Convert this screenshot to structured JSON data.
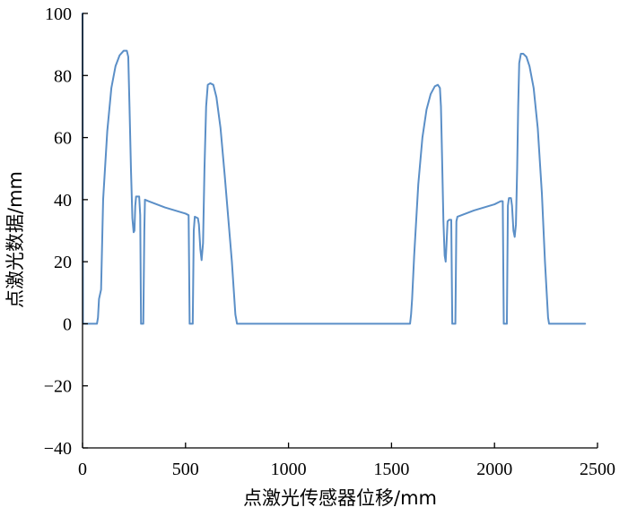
{
  "chart_data": {
    "type": "line",
    "xlabel": "点激光传感器位移/mm",
    "ylabel": "点激光数据/mm",
    "xlim": [
      0,
      2500
    ],
    "ylim": [
      -40,
      100
    ],
    "xticks": [
      0,
      500,
      1000,
      1500,
      2000,
      2500
    ],
    "yticks": [
      -40,
      -20,
      0,
      20,
      40,
      60,
      80,
      100
    ],
    "grid": false,
    "line_color": "#5b8fc7",
    "series": [
      {
        "points": [
          [
            0,
            100
          ],
          [
            2,
            0
          ],
          [
            70,
            0
          ],
          [
            75,
            2
          ],
          [
            80,
            8
          ],
          [
            90,
            11
          ],
          [
            100,
            40
          ],
          [
            120,
            62
          ],
          [
            140,
            76
          ],
          [
            160,
            83
          ],
          [
            180,
            86.5
          ],
          [
            200,
            88
          ],
          [
            215,
            88
          ],
          [
            222,
            86
          ],
          [
            228,
            70
          ],
          [
            235,
            50
          ],
          [
            242,
            34
          ],
          [
            248,
            29.5
          ],
          [
            252,
            30
          ],
          [
            256,
            38
          ],
          [
            260,
            41
          ],
          [
            275,
            41
          ],
          [
            280,
            35
          ],
          [
            284,
            0
          ],
          [
            295,
            0
          ],
          [
            300,
            30
          ],
          [
            303,
            40
          ],
          [
            320,
            39.5
          ],
          [
            400,
            37.5
          ],
          [
            500,
            35.5
          ],
          [
            515,
            35
          ],
          [
            520,
            0
          ],
          [
            535,
            0
          ],
          [
            540,
            30
          ],
          [
            545,
            34.5
          ],
          [
            560,
            34
          ],
          [
            565,
            32
          ],
          [
            572,
            24
          ],
          [
            578,
            20.5
          ],
          [
            585,
            26
          ],
          [
            592,
            50
          ],
          [
            600,
            70
          ],
          [
            608,
            77
          ],
          [
            620,
            77.5
          ],
          [
            635,
            77
          ],
          [
            650,
            73
          ],
          [
            670,
            63
          ],
          [
            690,
            48
          ],
          [
            710,
            32
          ],
          [
            725,
            20
          ],
          [
            735,
            10
          ],
          [
            742,
            3
          ],
          [
            750,
            0
          ],
          [
            1000,
            0
          ],
          [
            1500,
            0
          ],
          [
            1590,
            0
          ],
          [
            1595,
            3
          ],
          [
            1600,
            8
          ],
          [
            1610,
            22
          ],
          [
            1630,
            45
          ],
          [
            1650,
            60
          ],
          [
            1670,
            69
          ],
          [
            1690,
            74
          ],
          [
            1710,
            76.5
          ],
          [
            1725,
            77
          ],
          [
            1735,
            76
          ],
          [
            1740,
            70
          ],
          [
            1745,
            55
          ],
          [
            1752,
            33
          ],
          [
            1758,
            22
          ],
          [
            1763,
            20
          ],
          [
            1768,
            27
          ],
          [
            1772,
            33
          ],
          [
            1780,
            33.5
          ],
          [
            1790,
            33.5
          ],
          [
            1795,
            0
          ],
          [
            1810,
            0
          ],
          [
            1815,
            33
          ],
          [
            1820,
            34.5
          ],
          [
            1900,
            36.5
          ],
          [
            2000,
            38.5
          ],
          [
            2030,
            39.5
          ],
          [
            2040,
            39.5
          ],
          [
            2045,
            0
          ],
          [
            2060,
            0
          ],
          [
            2065,
            38
          ],
          [
            2070,
            40.5
          ],
          [
            2080,
            40.5
          ],
          [
            2085,
            38
          ],
          [
            2092,
            30
          ],
          [
            2098,
            28
          ],
          [
            2104,
            32
          ],
          [
            2110,
            50
          ],
          [
            2115,
            70
          ],
          [
            2120,
            84
          ],
          [
            2128,
            87
          ],
          [
            2140,
            87
          ],
          [
            2155,
            86
          ],
          [
            2170,
            83
          ],
          [
            2190,
            76
          ],
          [
            2210,
            63
          ],
          [
            2230,
            42
          ],
          [
            2245,
            20
          ],
          [
            2255,
            8
          ],
          [
            2260,
            2
          ],
          [
            2265,
            0
          ],
          [
            2440,
            0
          ]
        ]
      }
    ]
  }
}
